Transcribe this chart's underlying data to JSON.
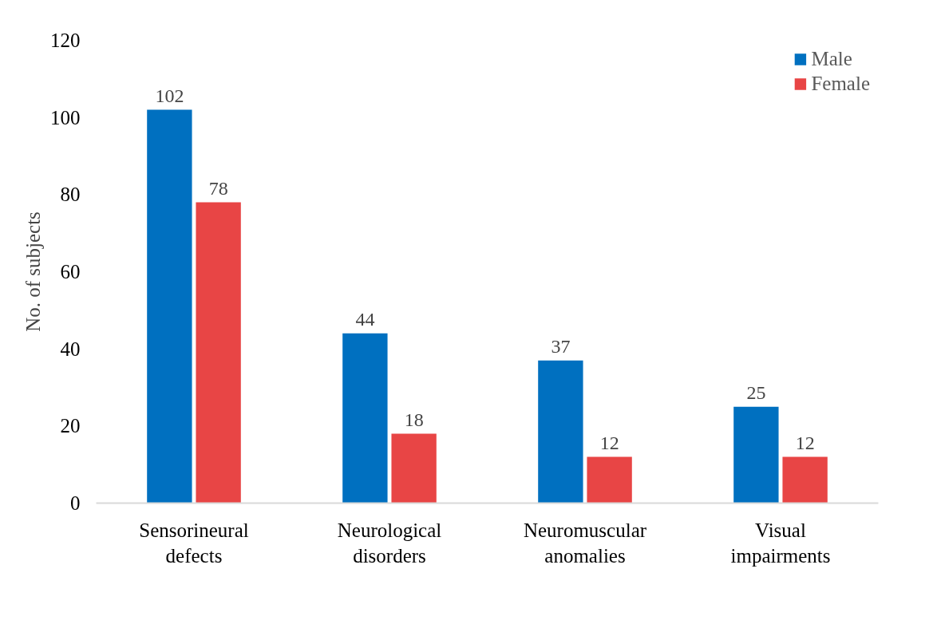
{
  "chart_data": {
    "type": "bar",
    "ylabel": "No. of subjects",
    "categories": [
      "Sensorineural defects",
      "Neurological disorders",
      "Neuromuscular anomalies",
      "Visual impairments"
    ],
    "series": [
      {
        "name": "Male",
        "color": "#0070c0",
        "values": [
          102,
          44,
          37,
          25
        ]
      },
      {
        "name": "Female",
        "color": "#e84545",
        "values": [
          78,
          18,
          12,
          12
        ]
      }
    ],
    "ylim": [
      0,
      120
    ],
    "yticks": [
      0,
      20,
      40,
      60,
      80,
      100,
      120
    ],
    "grid": false,
    "legend": "top right",
    "data_labels": true
  }
}
